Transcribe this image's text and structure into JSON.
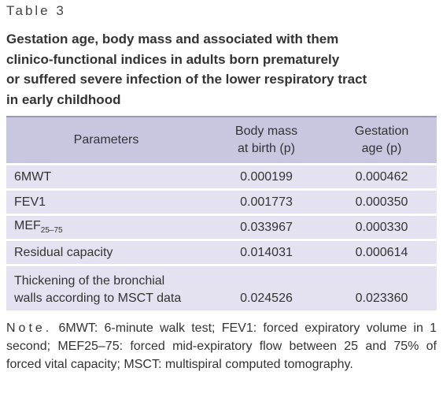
{
  "label": "Table 3",
  "title": [
    "Gestation age, body mass and associated with them",
    "clinico-functional indices in adults born prematurely",
    "or suffered severe infection of the lower respiratory tract",
    "in early childhood"
  ],
  "table": {
    "header": [
      "Parameters",
      [
        "Body mass",
        "at birth (p)"
      ],
      [
        "Gestation",
        "age (p)"
      ]
    ],
    "rows": [
      [
        "6MWT",
        "0.000199",
        "0.000462"
      ],
      [
        "FEV1",
        "0.001773",
        "0.000350"
      ],
      [
        {
          "main": "MEF",
          "sub": "25–75"
        },
        "0.033967",
        "0.000330"
      ],
      [
        "Residual capacity",
        "0.014031",
        "0.000614"
      ],
      [
        [
          "Thickening of the bronchial",
          "walls according to MSCT data"
        ],
        "0.024526",
        "0.023360"
      ]
    ]
  },
  "note": {
    "label": "Note.",
    "text": "6MWT: 6-minute walk test; FEV1: forced expiratory volume in 1 second; MEF25–75: forced mid-expiratory flow between 25 and 75% of forced vital capacity; MSCT: multispiral computed tomography."
  }
}
